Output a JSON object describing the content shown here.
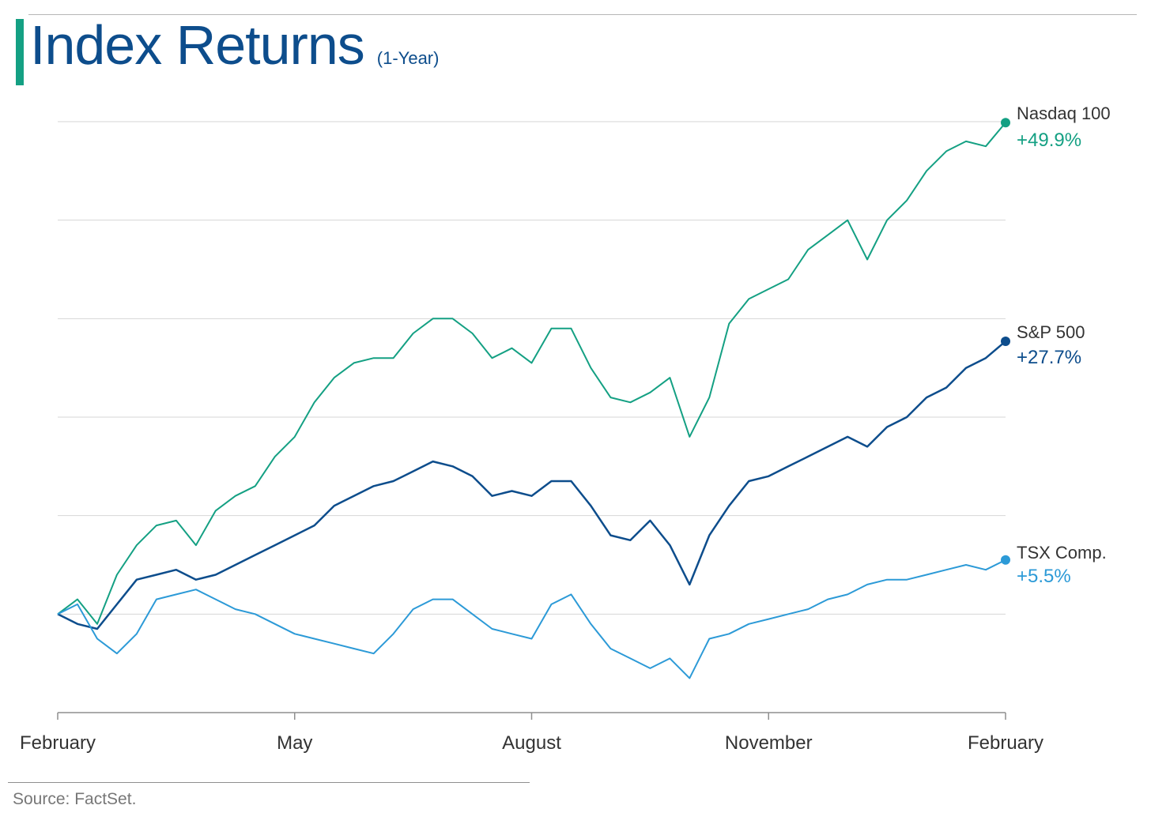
{
  "title": "Index Returns",
  "subtitle": "(1-Year)",
  "source": "Source: FactSet.",
  "colors": {
    "accent": "#14a083",
    "title": "#0d4d8c",
    "grid": "#d6d6d6",
    "axis": "#8f8f8f",
    "text": "#333333"
  },
  "chart_data": {
    "type": "line",
    "xlabel": "",
    "ylabel": "",
    "x_tick_labels": [
      "February",
      "May",
      "August",
      "November",
      "February"
    ],
    "x_ticks": [
      0,
      3,
      6,
      9,
      12
    ],
    "xlim": [
      0,
      12
    ],
    "ylim": [
      -10,
      50
    ],
    "y_gridlines": [
      0,
      10,
      20,
      30,
      40,
      50
    ],
    "y_ticks_labeled": false,
    "grid": true,
    "legend_placement": "right-end labels",
    "series": [
      {
        "name": "Nasdaq 100",
        "return_label": "+49.9%",
        "color": "#14a083",
        "x": [
          0,
          0.25,
          0.5,
          0.75,
          1,
          1.25,
          1.5,
          1.75,
          2,
          2.25,
          2.5,
          2.75,
          3,
          3.25,
          3.5,
          3.75,
          4,
          4.25,
          4.5,
          4.75,
          5,
          5.25,
          5.5,
          5.75,
          6,
          6.25,
          6.5,
          6.75,
          7,
          7.25,
          7.5,
          7.75,
          8,
          8.25,
          8.5,
          8.75,
          9,
          9.25,
          9.5,
          9.75,
          10,
          10.25,
          10.5,
          10.75,
          11,
          11.25,
          11.5,
          11.75,
          12
        ],
        "values": [
          0,
          1.5,
          -1,
          4,
          7,
          9,
          9.5,
          7,
          10.5,
          12,
          13,
          16,
          18,
          21.5,
          24,
          25.5,
          26,
          26,
          28.5,
          30,
          30,
          28.5,
          26,
          27,
          25.5,
          29,
          29,
          25,
          22,
          21.5,
          22.5,
          24,
          18,
          22,
          29.5,
          32,
          33,
          34,
          37,
          38.5,
          40,
          36,
          40,
          42,
          45,
          47,
          48,
          47.5,
          49.9
        ]
      },
      {
        "name": "S&P 500",
        "return_label": "+27.7%",
        "color": "#0d4d8c",
        "x": [
          0,
          0.25,
          0.5,
          0.75,
          1,
          1.25,
          1.5,
          1.75,
          2,
          2.25,
          2.5,
          2.75,
          3,
          3.25,
          3.5,
          3.75,
          4,
          4.25,
          4.5,
          4.75,
          5,
          5.25,
          5.5,
          5.75,
          6,
          6.25,
          6.5,
          6.75,
          7,
          7.25,
          7.5,
          7.75,
          8,
          8.25,
          8.5,
          8.75,
          9,
          9.25,
          9.5,
          9.75,
          10,
          10.25,
          10.5,
          10.75,
          11,
          11.25,
          11.5,
          11.75,
          12
        ],
        "values": [
          0,
          -1,
          -1.5,
          1,
          3.5,
          4,
          4.5,
          3.5,
          4,
          5,
          6,
          7,
          8,
          9,
          11,
          12,
          13,
          13.5,
          14.5,
          15.5,
          15,
          14,
          12,
          12.5,
          12,
          13.5,
          13.5,
          11,
          8,
          7.5,
          9.5,
          7,
          3,
          8,
          11,
          13.5,
          14,
          15,
          16,
          17,
          18,
          17,
          19,
          20,
          22,
          23,
          25,
          26,
          27.7
        ]
      },
      {
        "name": "TSX Comp.",
        "return_label": "+5.5%",
        "color": "#2c9ad7",
        "x": [
          0,
          0.25,
          0.5,
          0.75,
          1,
          1.25,
          1.5,
          1.75,
          2,
          2.25,
          2.5,
          2.75,
          3,
          3.25,
          3.5,
          3.75,
          4,
          4.25,
          4.5,
          4.75,
          5,
          5.25,
          5.5,
          5.75,
          6,
          6.25,
          6.5,
          6.75,
          7,
          7.25,
          7.5,
          7.75,
          8,
          8.25,
          8.5,
          8.75,
          9,
          9.25,
          9.5,
          9.75,
          10,
          10.25,
          10.5,
          10.75,
          11,
          11.25,
          11.5,
          11.75,
          12
        ],
        "values": [
          0,
          1,
          -2.5,
          -4,
          -2,
          1.5,
          2,
          2.5,
          1.5,
          0.5,
          0,
          -1,
          -2,
          -2.5,
          -3,
          -3.5,
          -4,
          -2,
          0.5,
          1.5,
          1.5,
          0,
          -1.5,
          -2,
          -2.5,
          1,
          2,
          -1,
          -3.5,
          -4.5,
          -5.5,
          -4.5,
          -6.5,
          -2.5,
          -2,
          -1,
          -0.5,
          0,
          0.5,
          1.5,
          2,
          3,
          3.5,
          3.5,
          4,
          4.5,
          5,
          4.5,
          5.5
        ]
      }
    ]
  }
}
